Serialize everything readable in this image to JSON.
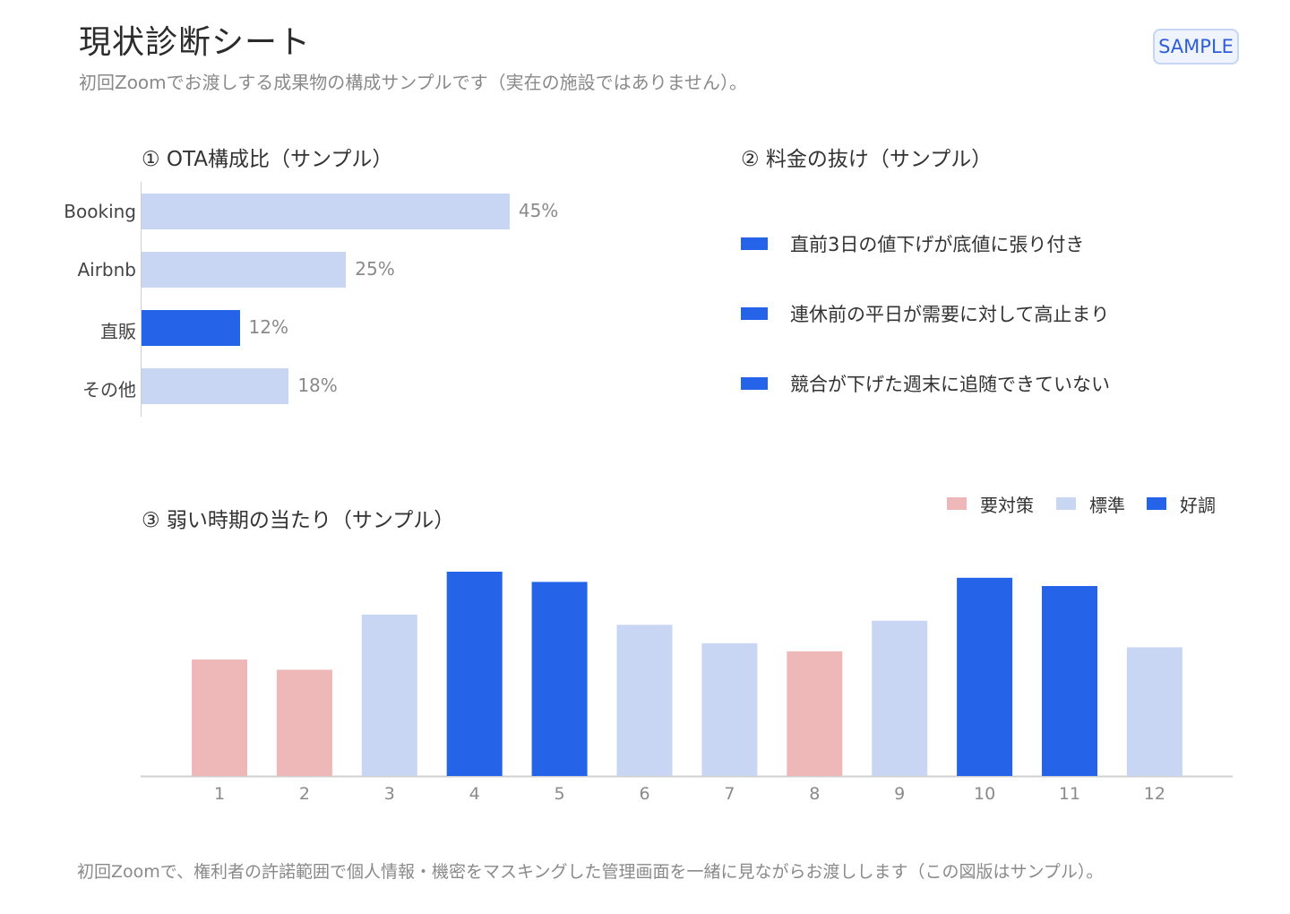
{
  "header": {
    "title": "現状診断シート",
    "subtitle": "初回Zoomでお渡しする成果物の構成サンプルです（実在の施設ではありません）。",
    "badge": "SAMPLE"
  },
  "colors": {
    "light": "#c8d6f4",
    "strong": "#2563e8",
    "warn": "#efb8b8",
    "axis": "#d0d0d0"
  },
  "chart_data": [
    {
      "type": "bar",
      "orientation": "horizontal",
      "title": "① OTA構成比（サンプル）",
      "categories": [
        "Booking",
        "Airbnb",
        "直販",
        "その他"
      ],
      "values": [
        45,
        25,
        12,
        18
      ],
      "value_labels": [
        "45%",
        "25%",
        "12%",
        "18%"
      ],
      "highlight": [
        "light",
        "light",
        "strong",
        "light"
      ],
      "xlim": [
        0,
        100
      ]
    },
    {
      "type": "bar",
      "title": "③ 弱い時期の当たり（サンプル）",
      "categories": [
        "1",
        "2",
        "3",
        "4",
        "5",
        "6",
        "7",
        "8",
        "9",
        "10",
        "11",
        "12"
      ],
      "values": [
        57,
        52,
        79,
        100,
        95,
        74,
        65,
        61,
        76,
        97,
        93,
        63
      ],
      "status": [
        "要対策",
        "要対策",
        "標準",
        "好調",
        "好調",
        "標準",
        "標準",
        "要対策",
        "標準",
        "好調",
        "好調",
        "標準"
      ],
      "legend": [
        {
          "label": "要対策",
          "color": "#efb8b8"
        },
        {
          "label": "標準",
          "color": "#c8d6f4"
        },
        {
          "label": "好調",
          "color": "#2563e8"
        }
      ],
      "legend_position": "top-right",
      "ylim": [
        0,
        100
      ]
    }
  ],
  "findings": {
    "title": "② 料金の抜け（サンプル）",
    "items": [
      "直前3日の値下げが底値に張り付き",
      "連休前の平日が需要に対して高止まり",
      "競合が下げた週末に追随できていない"
    ]
  },
  "footer": "初回Zoomで、権利者の許諾範囲で個人情報・機密をマスキングした管理画面を一緒に見ながらお渡しします（この図版はサンプル）。"
}
